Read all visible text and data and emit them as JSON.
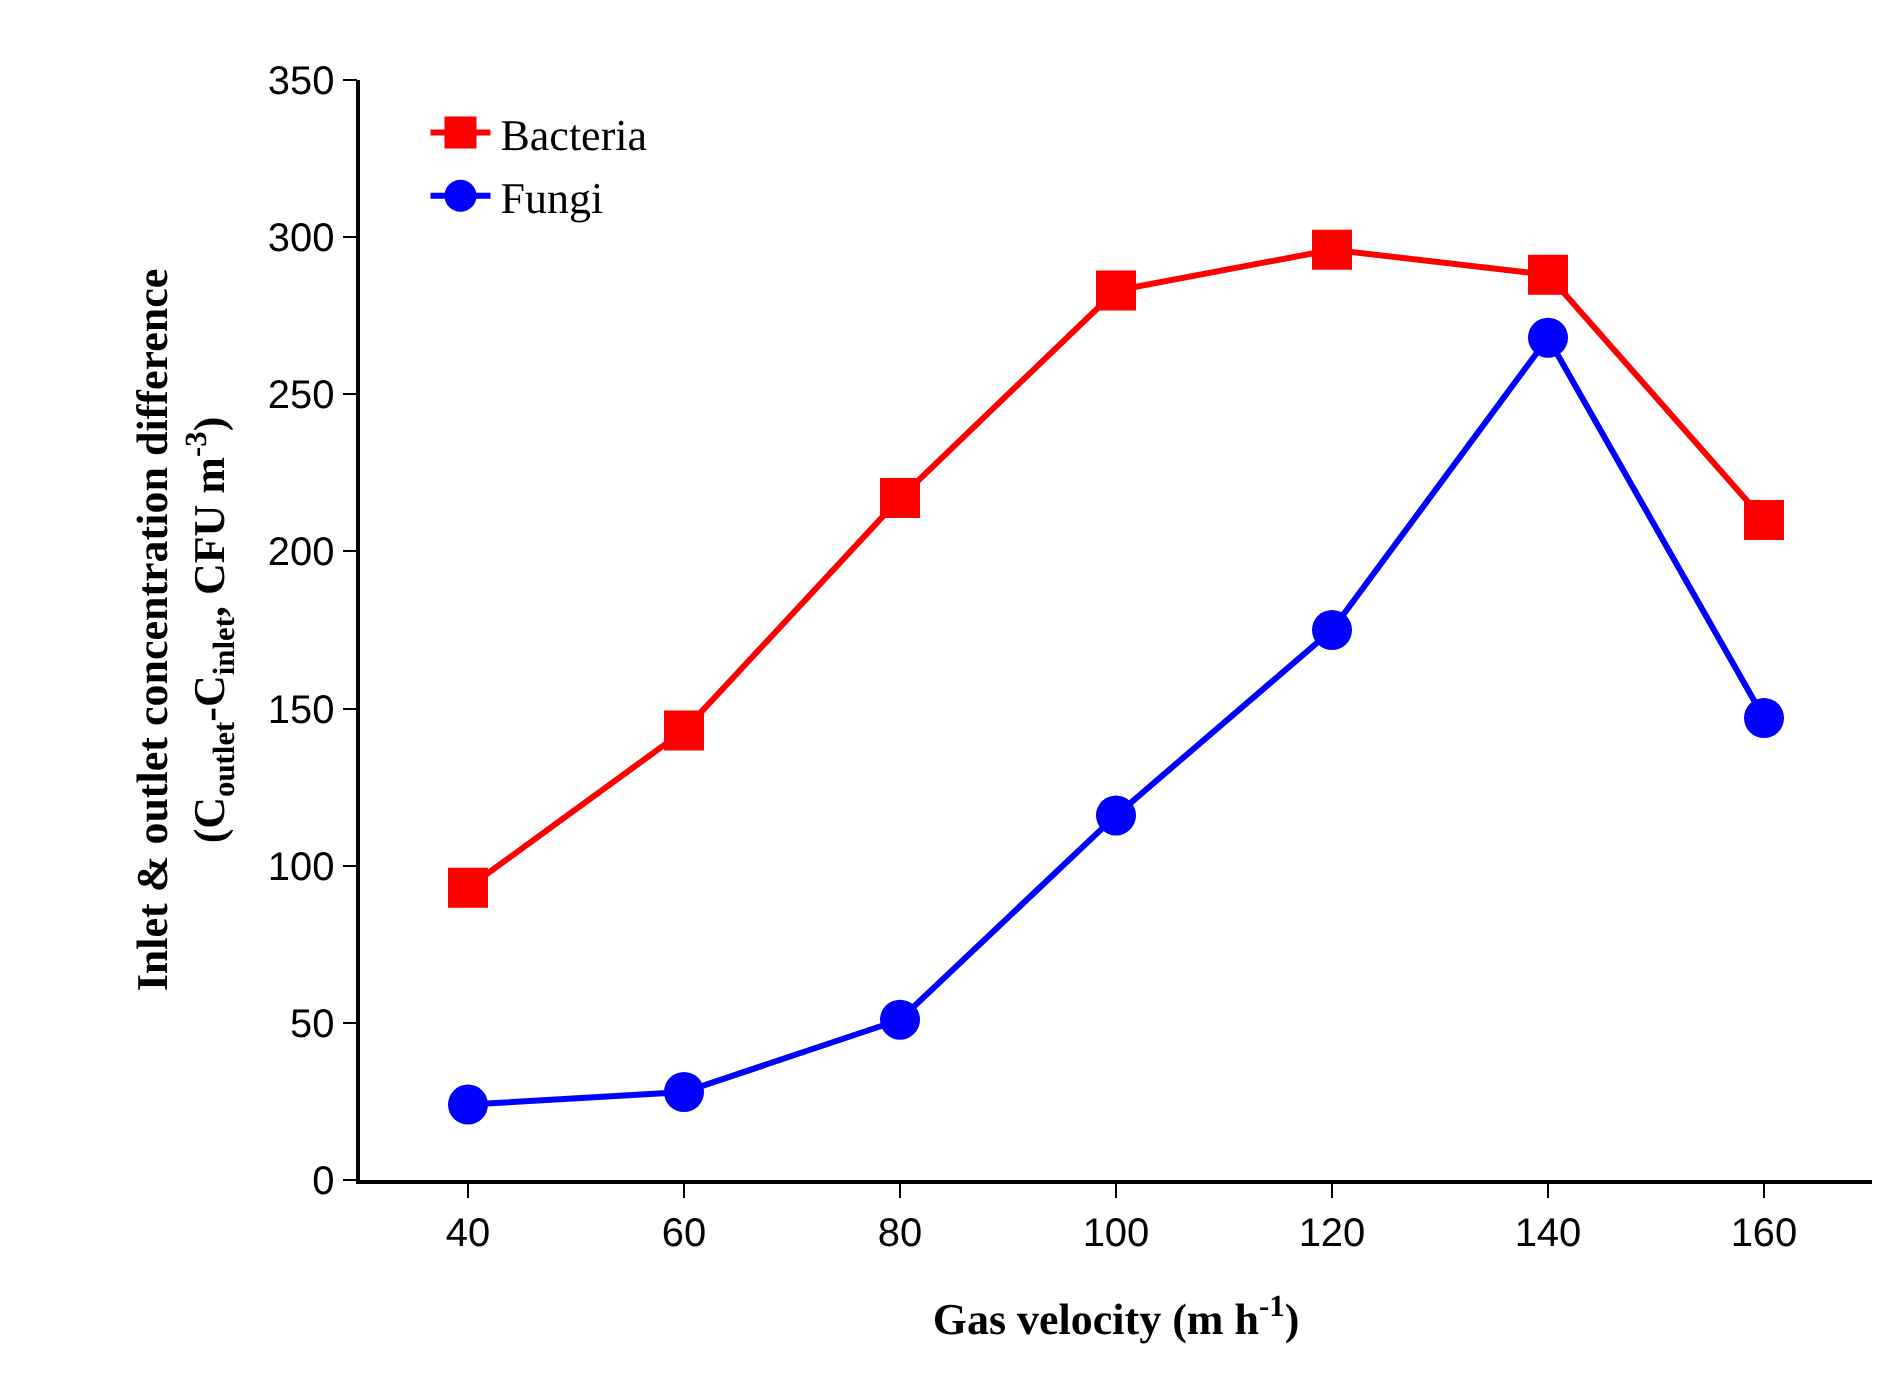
{
  "chart_data": {
    "type": "line",
    "xlabel": "Gas velocity (m h$^{-1}$)",
    "ylabel": "Inlet & outlet concentration difference\n(C$_{outlet}$-C$_{inlet}$, CFU m$^{-3}$)",
    "x": [
      40,
      60,
      80,
      100,
      120,
      140,
      160
    ],
    "series": [
      {
        "name": "Bacteria",
        "color": "#ff0000",
        "marker": "square",
        "values": [
          93,
          143,
          217,
          283,
          296,
          288,
          210
        ]
      },
      {
        "name": "Fungi",
        "color": "#0000ff",
        "marker": "circle",
        "values": [
          24,
          28,
          51,
          116,
          175,
          268,
          147
        ]
      }
    ],
    "xlim": [
      30,
      170
    ],
    "xticks": [
      40,
      60,
      80,
      100,
      120,
      140,
      160
    ],
    "ylim": [
      0,
      350
    ],
    "yticks": [
      0,
      50,
      100,
      150,
      200,
      250,
      300,
      350
    ],
    "grid": false,
    "legend": "top left",
    "line_style": "solid"
  }
}
